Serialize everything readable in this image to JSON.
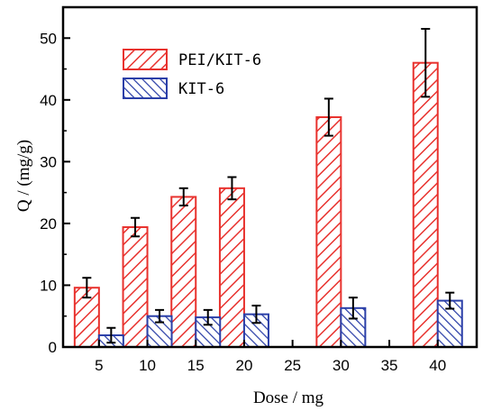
{
  "chart_data": {
    "type": "bar",
    "xlabel": "Dose / mg",
    "ylabel": "Q / (mg/g)",
    "ylim": [
      0,
      55
    ],
    "yticks": [
      0,
      10,
      20,
      30,
      40,
      50
    ],
    "x_tick_labels": [
      "5",
      "10",
      "15",
      "20",
      "25",
      "30",
      "35",
      "40"
    ],
    "categories": [
      "5",
      "10",
      "15",
      "20",
      "30",
      "40"
    ],
    "legend_position": "top-left",
    "series": [
      {
        "name": "PEI/KIT-6",
        "color": "#e8322e",
        "values": [
          9.6,
          19.4,
          24.3,
          25.7,
          37.2,
          46.0
        ],
        "errors": [
          1.6,
          1.5,
          1.4,
          1.8,
          3.0,
          5.5
        ]
      },
      {
        "name": "KIT-6",
        "color": "#2b3fa8",
        "values": [
          1.9,
          5.0,
          4.8,
          5.3,
          6.3,
          7.5
        ],
        "errors": [
          1.2,
          1.0,
          1.2,
          1.4,
          1.7,
          1.3
        ]
      }
    ]
  }
}
